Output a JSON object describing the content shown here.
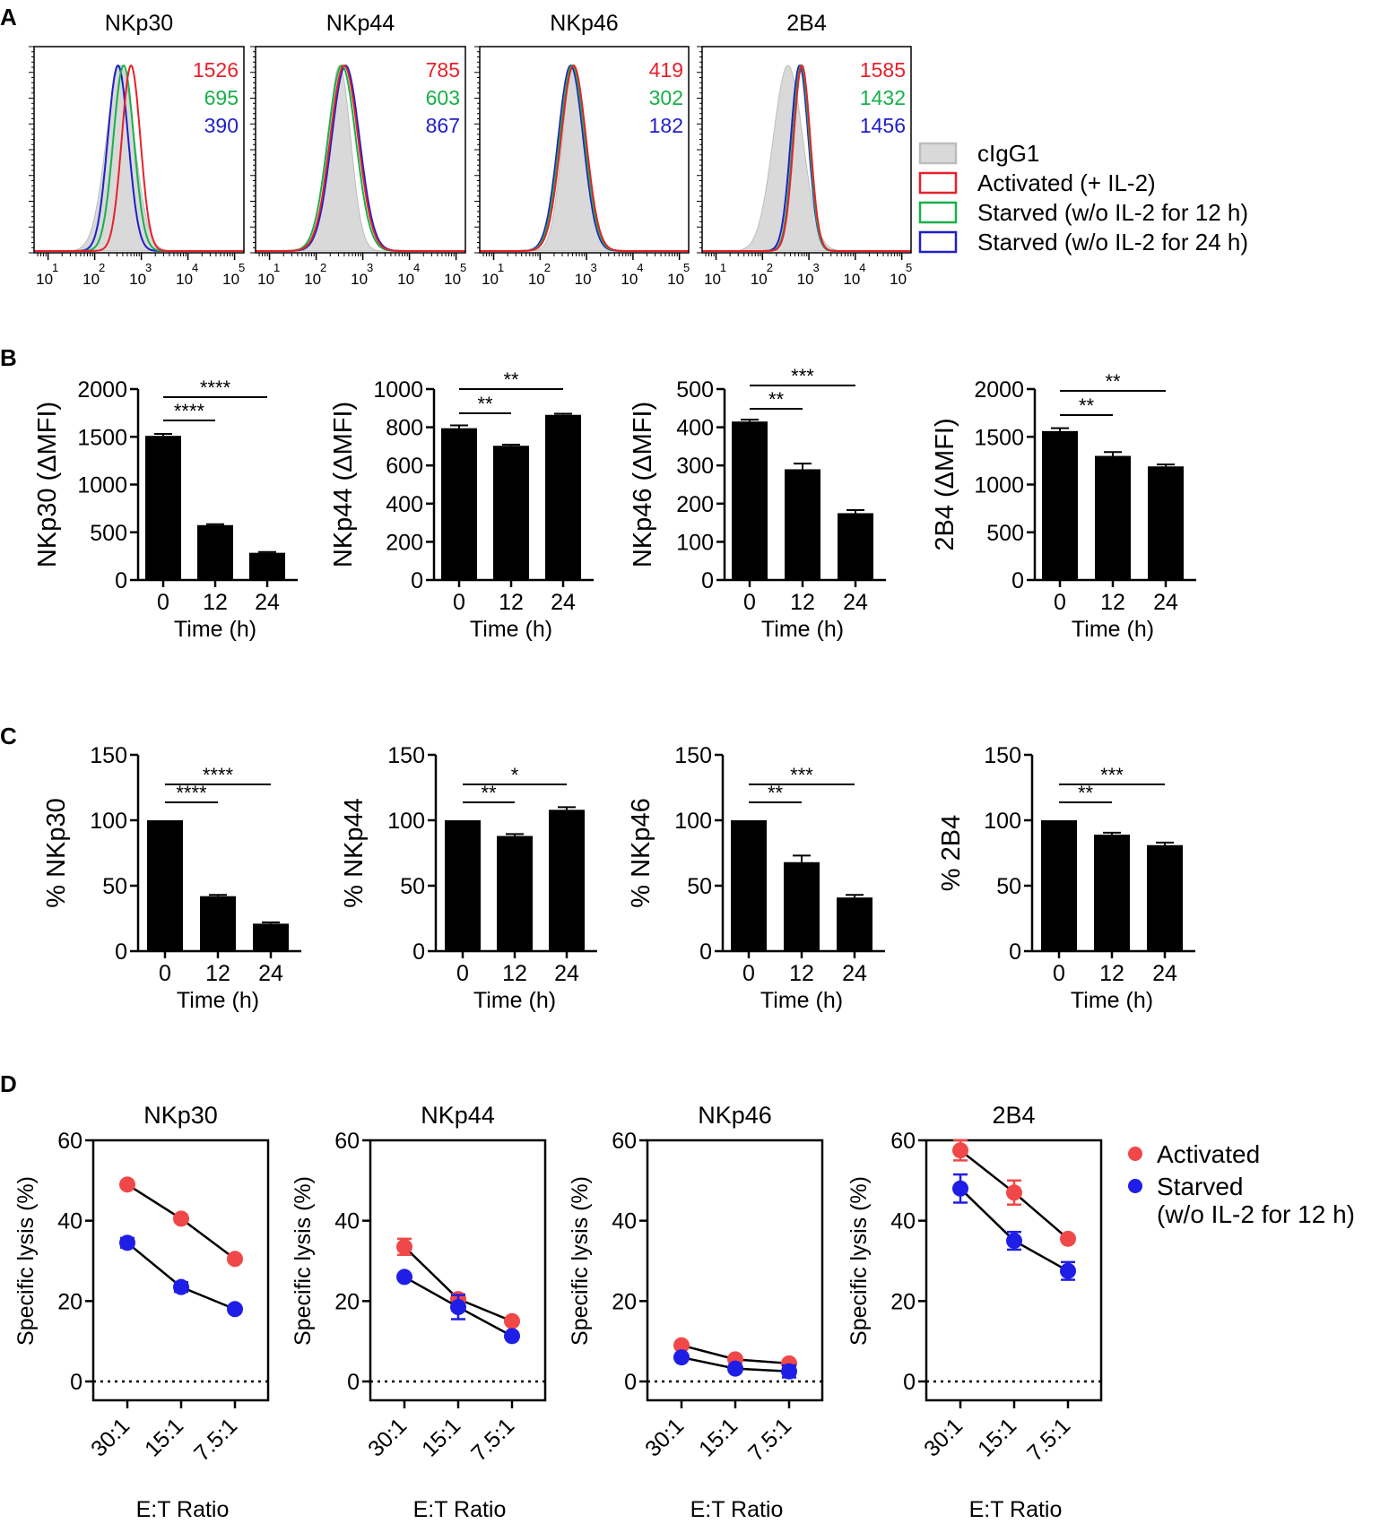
{
  "figure": {
    "panel_labels": [
      "A",
      "B",
      "C",
      "D"
    ],
    "time_axis_label": "Time (h)",
    "et_axis_label": "E:T Ratio",
    "lysis_ylabel": "Specific lysis (%)"
  },
  "chart_data": [
    {
      "panel": "A",
      "type": "area",
      "subtype": "flow-histogram",
      "x_scale": "log10",
      "xlim_exp": [
        0.7,
        5.2
      ],
      "x_ticks": [
        {
          "base": "10",
          "exp": "1"
        },
        {
          "base": "10",
          "exp": "2"
        },
        {
          "base": "10",
          "exp": "3"
        },
        {
          "base": "10",
          "exp": "4"
        },
        {
          "base": "10",
          "exp": "5"
        }
      ],
      "legend": {
        "position": "right",
        "entries": [
          {
            "label": "cIgG1",
            "color": "#bdbdbd",
            "fill": "#d9d9d9"
          },
          {
            "label": "Activated (+ IL-2)",
            "color": "#e8202a"
          },
          {
            "label": "Starved (w/o IL-2 for 12 h)",
            "color": "#18b04a"
          },
          {
            "label": "Starved (w/o IL-2 for 24 h)",
            "color": "#1f1fc8"
          }
        ]
      },
      "histograms": [
        {
          "title": "NKp30",
          "mfi": [
            "1526",
            "695",
            "390"
          ],
          "peaks": {
            "iso": 2.55,
            "activated": 2.78,
            "starved12": 2.62,
            "starved24": 2.5
          },
          "sd": {
            "iso": 0.3,
            "activated": 0.2,
            "starved12": 0.22,
            "starved24": 0.22
          }
        },
        {
          "title": "NKp44",
          "mfi": [
            "785",
            "603",
            "867"
          ],
          "peaks": {
            "iso": 2.5,
            "activated": 2.6,
            "starved12": 2.55,
            "starved24": 2.63
          },
          "sd": {
            "iso": 0.24,
            "activated": 0.3,
            "starved12": 0.3,
            "starved24": 0.3
          }
        },
        {
          "title": "NKp46",
          "mfi": [
            "419",
            "302",
            "182"
          ],
          "peaks": {
            "iso": 2.72,
            "activated": 2.72,
            "starved12": 2.69,
            "starved24": 2.66
          },
          "sd": {
            "iso": 0.24,
            "activated": 0.27,
            "starved12": 0.27,
            "starved24": 0.27
          }
        },
        {
          "title": "2B4",
          "mfi": [
            "1585",
            "1432",
            "1456"
          ],
          "peaks": {
            "iso": 2.55,
            "activated": 2.85,
            "starved12": 2.83,
            "starved24": 2.8
          },
          "sd": {
            "iso": 0.32,
            "activated": 0.18,
            "starved12": 0.18,
            "starved24": 0.19
          }
        }
      ]
    },
    {
      "panel": "B",
      "type": "bar",
      "categories": [
        "0",
        "12",
        "24"
      ],
      "xlabel": "Time (h)",
      "charts": [
        {
          "ylabel": "NKp30 (ΔMFI)",
          "ylim": [
            0,
            2000
          ],
          "yticks": [
            0,
            500,
            1000,
            1500,
            2000
          ],
          "values": [
            1510,
            575,
            285
          ],
          "errors": [
            20,
            10,
            8
          ],
          "sig": [
            {
              "from": 0,
              "to": 1,
              "label": "****"
            },
            {
              "from": 0,
              "to": 2,
              "label": "****"
            }
          ]
        },
        {
          "ylabel": "NKp44 (ΔMFI)",
          "ylim": [
            0,
            1000
          ],
          "yticks": [
            0,
            200,
            400,
            600,
            800,
            1000
          ],
          "values": [
            795,
            703,
            865
          ],
          "errors": [
            15,
            6,
            6
          ],
          "sig": [
            {
              "from": 0,
              "to": 1,
              "label": "**"
            },
            {
              "from": 0,
              "to": 2,
              "label": "**"
            }
          ]
        },
        {
          "ylabel": "NKp46 (ΔMFI)",
          "ylim": [
            0,
            500
          ],
          "yticks": [
            0,
            100,
            200,
            300,
            400,
            500
          ],
          "values": [
            415,
            290,
            175
          ],
          "errors": [
            5,
            15,
            8
          ],
          "sig": [
            {
              "from": 0,
              "to": 1,
              "label": "**"
            },
            {
              "from": 0,
              "to": 2,
              "label": "***"
            }
          ]
        },
        {
          "ylabel": "2B4 (ΔMFI)",
          "ylim": [
            0,
            2000
          ],
          "yticks": [
            0,
            500,
            1000,
            1500,
            2000
          ],
          "values": [
            1560,
            1300,
            1190
          ],
          "errors": [
            30,
            40,
            20
          ],
          "sig": [
            {
              "from": 0,
              "to": 1,
              "label": "**"
            },
            {
              "from": 0,
              "to": 2,
              "label": "**"
            }
          ]
        }
      ]
    },
    {
      "panel": "C",
      "type": "bar",
      "categories": [
        "0",
        "12",
        "24"
      ],
      "xlabel": "Time (h)",
      "charts": [
        {
          "ylabel": "% NKp30",
          "ylim": [
            0,
            150
          ],
          "yticks": [
            0,
            50,
            100,
            150
          ],
          "values": [
            100,
            42,
            21
          ],
          "errors": [
            0,
            1,
            1
          ],
          "sig": [
            {
              "from": 0,
              "to": 1,
              "label": "****"
            },
            {
              "from": 0,
              "to": 2,
              "label": "****"
            }
          ]
        },
        {
          "ylabel": "% NKp44",
          "ylim": [
            0,
            150
          ],
          "yticks": [
            0,
            50,
            100,
            150
          ],
          "values": [
            100,
            88,
            108
          ],
          "errors": [
            0,
            1.5,
            2
          ],
          "sig": [
            {
              "from": 0,
              "to": 1,
              "label": "**"
            },
            {
              "from": 0,
              "to": 2,
              "label": "*"
            }
          ]
        },
        {
          "ylabel": "% NKp46",
          "ylim": [
            0,
            150
          ],
          "yticks": [
            0,
            50,
            100,
            150
          ],
          "values": [
            100,
            68,
            41
          ],
          "errors": [
            0,
            5,
            2
          ],
          "sig": [
            {
              "from": 0,
              "to": 1,
              "label": "**"
            },
            {
              "from": 0,
              "to": 2,
              "label": "***"
            }
          ]
        },
        {
          "ylabel": "% 2B4",
          "ylim": [
            0,
            150
          ],
          "yticks": [
            0,
            50,
            100,
            150
          ],
          "values": [
            100,
            89,
            81
          ],
          "errors": [
            0,
            1.5,
            2
          ],
          "sig": [
            {
              "from": 0,
              "to": 1,
              "label": "**"
            },
            {
              "from": 0,
              "to": 2,
              "label": "***"
            }
          ]
        }
      ]
    },
    {
      "panel": "D",
      "type": "line",
      "x": [
        "30:1",
        "15:1",
        "7.5:1"
      ],
      "xlabel": "E:T Ratio",
      "ylabel": "Specific lysis (%)",
      "ylim": [
        0,
        60
      ],
      "yticks": [
        0,
        20,
        40,
        60
      ],
      "legend": {
        "position": "right",
        "entries": [
          {
            "label": "Activated",
            "color": "#f04848"
          },
          {
            "label": "Starved",
            "label2": "(w/o IL-2 for 12 h)",
            "color": "#1e1ee6"
          }
        ]
      },
      "charts": [
        {
          "title": "NKp30",
          "series": [
            {
              "name": "Activated",
              "values": [
                49,
                40.5,
                30.5
              ],
              "errors": [
                0.8,
                0.8,
                0.8
              ]
            },
            {
              "name": "Starved",
              "values": [
                34.5,
                23.5,
                18
              ],
              "errors": [
                1.2,
                1.2,
                0.8
              ]
            }
          ]
        },
        {
          "title": "NKp44",
          "series": [
            {
              "name": "Activated",
              "values": [
                33.5,
                20.5,
                15
              ],
              "errors": [
                2,
                1.2,
                0.8
              ]
            },
            {
              "name": "Starved",
              "values": [
                26,
                18.5,
                11.3
              ],
              "errors": [
                0.8,
                3,
                0.8
              ]
            }
          ]
        },
        {
          "title": "NKp46",
          "series": [
            {
              "name": "Activated",
              "values": [
                9,
                5.5,
                4.5
              ],
              "errors": [
                0.8,
                0.8,
                0.8
              ]
            },
            {
              "name": "Starved",
              "values": [
                6,
                3.2,
                2.5
              ],
              "errors": [
                0.8,
                0.8,
                1.5
              ]
            }
          ]
        },
        {
          "title": "2B4",
          "series": [
            {
              "name": "Activated",
              "values": [
                57.5,
                47,
                35.5
              ],
              "errors": [
                2.5,
                3,
                0.8
              ]
            },
            {
              "name": "Starved",
              "values": [
                48,
                35,
                27.5
              ],
              "errors": [
                3.5,
                2.2,
                2.2
              ]
            }
          ]
        }
      ]
    }
  ]
}
